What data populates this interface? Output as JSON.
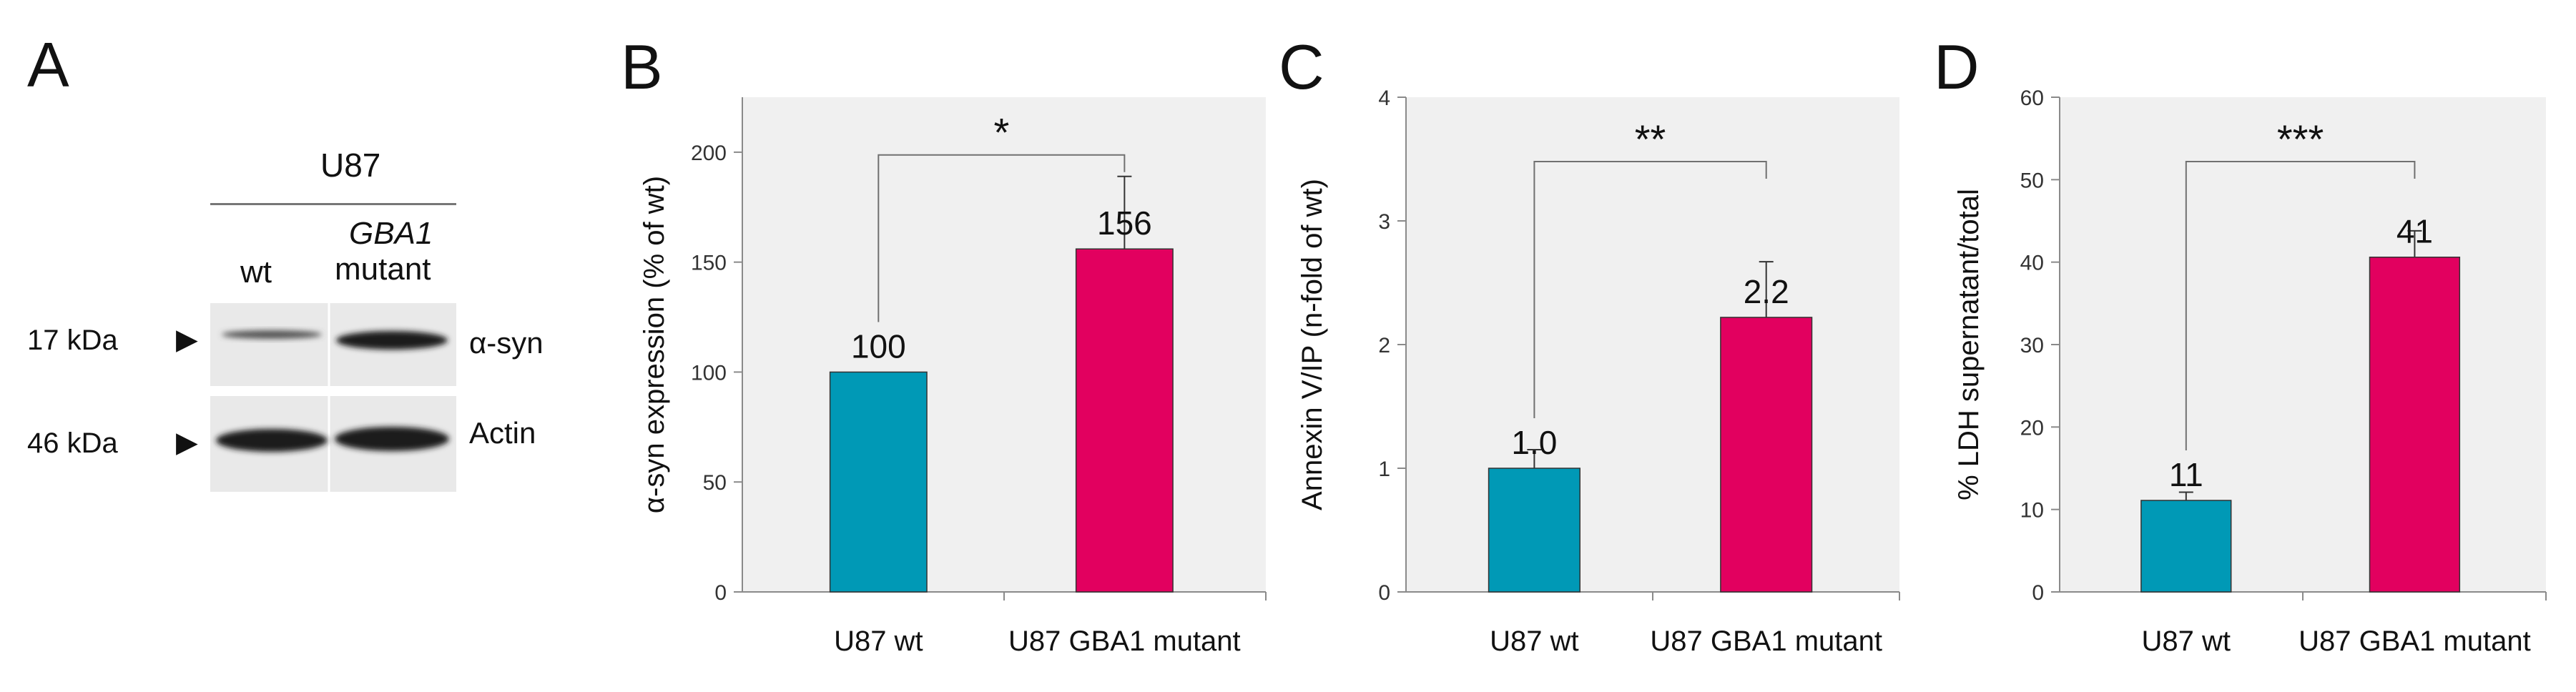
{
  "panel_a": {
    "letter": "A",
    "cell_line": "U87",
    "lane_wt": "wt",
    "lane_mut_gene": "GBA1",
    "lane_mut": "mutant",
    "markers": [
      {
        "weight": "17 kDa",
        "band": "α-syn"
      },
      {
        "weight": "46 kDa",
        "band": "Actin"
      }
    ],
    "colors": {
      "blot_bg": "#e9e9e9",
      "band": "#1a1a1a"
    }
  },
  "colors": {
    "wt": "#0099b6",
    "mutant": "#e2005f",
    "plot_bg": "#f0f0f0",
    "bracket": "#707070"
  },
  "chart_data": [
    {
      "letter": "B",
      "type": "bar",
      "categories": [
        "U87 wt",
        "U87 GBA1 mutant"
      ],
      "values": [
        100,
        156
      ],
      "errors": [
        0,
        33
      ],
      "value_labels": [
        "100",
        "156"
      ],
      "ylabel": "α-syn expression (% of wt)",
      "ylim": [
        0,
        225
      ],
      "yticks": [
        0,
        50,
        100,
        150,
        200
      ],
      "significance": "*",
      "grid": false
    },
    {
      "letter": "C",
      "type": "bar",
      "categories": [
        "U87 wt",
        "U87 GBA1 mutant"
      ],
      "values": [
        1.0,
        2.22
      ],
      "errors": [
        0.15,
        0.45
      ],
      "value_labels": [
        "1.0",
        "2.2"
      ],
      "ylabel": "Annexin V/IP (n-fold of wt)",
      "ylim": [
        0,
        4
      ],
      "yticks": [
        0,
        1,
        2,
        3,
        4
      ],
      "significance": "**",
      "grid": false
    },
    {
      "letter": "D",
      "type": "bar",
      "categories": [
        "U87 wt",
        "U87 GBA1 mutant"
      ],
      "values": [
        11.1,
        40.6
      ],
      "errors": [
        1.0,
        3.2
      ],
      "value_labels": [
        "11",
        "41"
      ],
      "ylabel": "% LDH supernatant/total",
      "ylim": [
        0,
        60
      ],
      "yticks": [
        0,
        10,
        20,
        30,
        40,
        50,
        60
      ],
      "significance": "***",
      "grid": false
    }
  ]
}
